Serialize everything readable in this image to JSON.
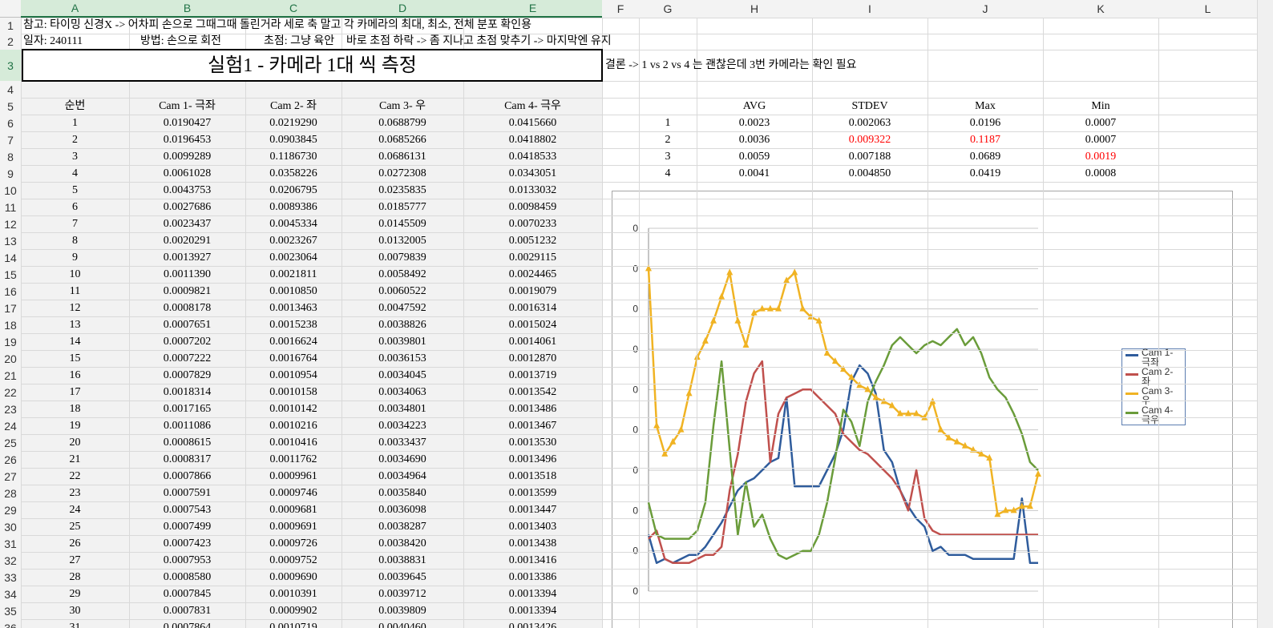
{
  "column_headers": [
    "A",
    "B",
    "C",
    "D",
    "E",
    "F",
    "G",
    "H",
    "I",
    "J",
    "K",
    "L"
  ],
  "row_numbers": [
    1,
    2,
    3,
    4,
    5,
    6,
    7,
    8,
    9,
    10,
    11,
    12,
    13,
    14,
    15,
    16,
    17,
    18,
    19,
    20,
    21,
    22,
    23,
    24,
    25,
    26,
    27,
    28,
    29,
    30,
    31,
    32,
    33,
    34,
    35,
    36
  ],
  "note": "참고: 타이밍 신경X -> 어차피 손으로 그때그때 돌린거라 세로 축 말고 각 카메라의 최대, 최소, 전체 분포 확인용",
  "row2": [
    "일자: 240111",
    "방법: 손으로 회전",
    "초점: 그냥 육안",
    "바로 초점 하락 -> 좀 지나고 초점 맞추기 -> 마지막엔 유지"
  ],
  "title": "실험1 - 카메라 1대 씩 측정",
  "conclusion": "결론 -> 1 vs 2 vs 4 는 괜찮은데 3번 카메라는 확인 필요",
  "table": {
    "header": [
      "순번",
      "Cam 1- 극좌",
      "Cam 2- 좌",
      "Cam 3- 우",
      "Cam 4- 극우"
    ],
    "rows": [
      [
        1,
        "0.0190427",
        "0.0219290",
        "0.0688799",
        "0.0415660"
      ],
      [
        2,
        "0.0196453",
        "0.0903845",
        "0.0685266",
        "0.0418802"
      ],
      [
        3,
        "0.0099289",
        "0.1186730",
        "0.0686131",
        "0.0418533"
      ],
      [
        4,
        "0.0061028",
        "0.0358226",
        "0.0272308",
        "0.0343051"
      ],
      [
        5,
        "0.0043753",
        "0.0206795",
        "0.0235835",
        "0.0133032"
      ],
      [
        6,
        "0.0027686",
        "0.0089386",
        "0.0185777",
        "0.0098459"
      ],
      [
        7,
        "0.0023437",
        "0.0045334",
        "0.0145509",
        "0.0070233"
      ],
      [
        8,
        "0.0020291",
        "0.0023267",
        "0.0132005",
        "0.0051232"
      ],
      [
        9,
        "0.0013927",
        "0.0023064",
        "0.0079839",
        "0.0029115"
      ],
      [
        10,
        "0.0011390",
        "0.0021811",
        "0.0058492",
        "0.0024465"
      ],
      [
        11,
        "0.0009821",
        "0.0010850",
        "0.0060522",
        "0.0019079"
      ],
      [
        12,
        "0.0008178",
        "0.0013463",
        "0.0047592",
        "0.0016314"
      ],
      [
        13,
        "0.0007651",
        "0.0015238",
        "0.0038826",
        "0.0015024"
      ],
      [
        14,
        "0.0007202",
        "0.0016624",
        "0.0039801",
        "0.0014061"
      ],
      [
        15,
        "0.0007222",
        "0.0016764",
        "0.0036153",
        "0.0012870"
      ],
      [
        16,
        "0.0007829",
        "0.0010954",
        "0.0034045",
        "0.0013719"
      ],
      [
        17,
        "0.0018314",
        "0.0010158",
        "0.0034063",
        "0.0013542"
      ],
      [
        18,
        "0.0017165",
        "0.0010142",
        "0.0034801",
        "0.0013486"
      ],
      [
        19,
        "0.0011086",
        "0.0010216",
        "0.0034223",
        "0.0013467"
      ],
      [
        20,
        "0.0008615",
        "0.0010416",
        "0.0033437",
        "0.0013530"
      ],
      [
        21,
        "0.0008317",
        "0.0011762",
        "0.0034690",
        "0.0013496"
      ],
      [
        22,
        "0.0007866",
        "0.0009961",
        "0.0034964",
        "0.0013518"
      ],
      [
        23,
        "0.0007591",
        "0.0009746",
        "0.0035840",
        "0.0013599"
      ],
      [
        24,
        "0.0007543",
        "0.0009681",
        "0.0036098",
        "0.0013447"
      ],
      [
        25,
        "0.0007499",
        "0.0009691",
        "0.0038287",
        "0.0013403"
      ],
      [
        26,
        "0.0007423",
        "0.0009726",
        "0.0038420",
        "0.0013438"
      ],
      [
        27,
        "0.0007953",
        "0.0009752",
        "0.0038831",
        "0.0013416"
      ],
      [
        28,
        "0.0008580",
        "0.0009690",
        "0.0039645",
        "0.0013386"
      ],
      [
        29,
        "0.0007845",
        "0.0010391",
        "0.0039712",
        "0.0013394"
      ],
      [
        30,
        "0.0007831",
        "0.0009902",
        "0.0039809",
        "0.0013394"
      ],
      [
        31,
        "0.0007864",
        "0.0010719",
        "0.0040460",
        "0.0013426"
      ]
    ]
  },
  "summary": {
    "header": [
      "AVG",
      "STDEV",
      "Max",
      "Min"
    ],
    "rows": [
      {
        "label": 1,
        "cells": [
          "0.0023",
          "0.002063",
          "0.0196",
          "0.0007"
        ],
        "colors": [
          "#000000",
          "#000000",
          "#000000",
          "#000000"
        ]
      },
      {
        "label": 2,
        "cells": [
          "0.0036",
          "0.009322",
          "0.1187",
          "0.0007"
        ],
        "colors": [
          "#000000",
          "#ff0000",
          "#ff0000",
          "#000000"
        ]
      },
      {
        "label": 3,
        "cells": [
          "0.0059",
          "0.007188",
          "0.0689",
          "0.0019"
        ],
        "colors": [
          "#000000",
          "#000000",
          "#000000",
          "#ff0000"
        ]
      },
      {
        "label": 4,
        "cells": [
          "0.0041",
          "0.004850",
          "0.0419",
          "0.0008"
        ],
        "colors": [
          "#000000",
          "#000000",
          "#000000",
          "#000000"
        ]
      }
    ]
  },
  "chart": {
    "type": "line",
    "grid": true,
    "legend": "right",
    "ylim": [
      0,
      9
    ],
    "yticks": [
      {
        "value": 0,
        "label": "0"
      },
      {
        "value": 1,
        "label": "0"
      },
      {
        "value": 2,
        "label": "0"
      },
      {
        "value": 3,
        "label": "0"
      },
      {
        "value": 4,
        "label": "0"
      },
      {
        "value": 5,
        "label": "0"
      },
      {
        "value": 6,
        "label": "0"
      },
      {
        "value": 7,
        "label": "0"
      },
      {
        "value": 8,
        "label": "0"
      },
      {
        "value": 9,
        "label": "0"
      }
    ],
    "series": [
      {
        "name": "Cam 1- 극좌",
        "color": "#2f5c9c",
        "marker": "none",
        "values": [
          1.4,
          0.7,
          0.8,
          0.7,
          0.8,
          0.9,
          0.9,
          1.1,
          1.4,
          1.7,
          2.1,
          2.5,
          2.7,
          2.8,
          3.0,
          3.2,
          3.3,
          4.8,
          2.6,
          2.6,
          2.6,
          2.6,
          3.0,
          3.4,
          4.0,
          5.2,
          5.6,
          5.4,
          4.9,
          3.5,
          3.2,
          2.5,
          2.1,
          1.8,
          1.6,
          1.0,
          1.1,
          0.9,
          0.9,
          0.9,
          0.8,
          0.8,
          0.8,
          0.8,
          0.8,
          0.8,
          2.3,
          0.7,
          0.7
        ]
      },
      {
        "name": "Cam 2- 좌",
        "color": "#c0504d",
        "marker": "none",
        "values": [
          1.3,
          1.5,
          0.8,
          0.7,
          0.7,
          0.7,
          0.8,
          0.9,
          0.9,
          1.1,
          2.5,
          3.4,
          4.7,
          5.4,
          5.7,
          3.2,
          4.4,
          4.8,
          4.9,
          5.0,
          5.0,
          4.8,
          4.6,
          4.4,
          3.9,
          3.7,
          3.5,
          3.4,
          3.2,
          3.0,
          2.8,
          2.5,
          2.0,
          3.0,
          1.8,
          1.5,
          1.4,
          1.4,
          1.4,
          1.4,
          1.4,
          1.4,
          1.4,
          1.4,
          1.4,
          1.4,
          1.4,
          1.4,
          1.4
        ]
      },
      {
        "name": "Cam 3- 우",
        "color": "#f0b323",
        "marker": "triangle",
        "values": [
          8.0,
          4.1,
          3.4,
          3.7,
          4.0,
          4.9,
          5.8,
          6.2,
          6.7,
          7.3,
          7.9,
          6.7,
          6.1,
          6.9,
          7.0,
          7.0,
          7.0,
          7.7,
          7.9,
          7.0,
          6.8,
          6.7,
          5.9,
          5.7,
          5.5,
          5.3,
          5.1,
          5.0,
          4.8,
          4.7,
          4.6,
          4.4,
          4.4,
          4.4,
          4.3,
          4.7,
          4.0,
          3.8,
          3.7,
          3.6,
          3.5,
          3.4,
          3.3,
          1.9,
          2.0,
          2.0,
          2.1,
          2.1,
          2.9
        ]
      },
      {
        "name": "Cam 4- 극우",
        "color": "#6a9c3a",
        "marker": "none",
        "values": [
          2.2,
          1.4,
          1.3,
          1.3,
          1.3,
          1.3,
          1.5,
          2.2,
          4.1,
          5.7,
          3.5,
          1.4,
          2.7,
          1.6,
          1.9,
          1.3,
          0.9,
          0.8,
          0.9,
          1.0,
          1.0,
          1.4,
          2.2,
          3.3,
          4.5,
          4.2,
          3.6,
          4.7,
          5.2,
          5.6,
          6.1,
          6.3,
          6.1,
          5.9,
          6.1,
          6.2,
          6.1,
          6.3,
          6.5,
          6.1,
          6.3,
          5.9,
          5.3,
          5.0,
          4.8,
          4.4,
          3.9,
          3.2,
          3.0
        ]
      }
    ]
  }
}
